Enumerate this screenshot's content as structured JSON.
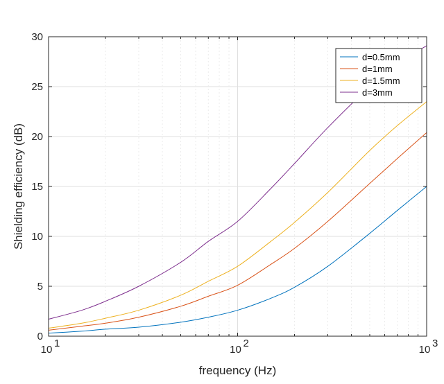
{
  "chart_data": {
    "type": "line",
    "title": "",
    "xlabel": "frequency (Hz)",
    "ylabel": "Shielding efficiency (dB)",
    "xscale": "log",
    "xlim": [
      10,
      1000
    ],
    "ylim": [
      0,
      30
    ],
    "xticks": [
      {
        "base": "10",
        "exp": "1"
      },
      {
        "base": "10",
        "exp": "2"
      },
      {
        "base": "10",
        "exp": "3"
      }
    ],
    "yticks": [
      "0",
      "5",
      "10",
      "15",
      "20",
      "25",
      "30"
    ],
    "grid": true,
    "legend_position": "top-right",
    "colors": {
      "axis": "#262626",
      "grid_major": "#dfdfdf",
      "grid_minor": "#ebebeb"
    },
    "series": [
      {
        "name": "d=0.5mm",
        "color": "#0072BD",
        "x": [
          10,
          15,
          20,
          30,
          50,
          70,
          100,
          150,
          200,
          300,
          500,
          700,
          1000
        ],
        "y": [
          0.3,
          0.5,
          0.7,
          0.9,
          1.4,
          1.9,
          2.6,
          3.8,
          4.9,
          7.0,
          10.3,
          12.6,
          15.0
        ]
      },
      {
        "name": "d=1mm",
        "color": "#D95319",
        "x": [
          10,
          15,
          20,
          30,
          50,
          70,
          100,
          150,
          200,
          300,
          500,
          700,
          1000
        ],
        "y": [
          0.6,
          1.0,
          1.3,
          1.9,
          3.0,
          4.0,
          5.1,
          7.2,
          8.8,
          11.5,
          15.3,
          17.8,
          20.4
        ]
      },
      {
        "name": "d=1.5mm",
        "color": "#EDB120",
        "x": [
          10,
          15,
          20,
          30,
          50,
          70,
          100,
          150,
          200,
          300,
          500,
          700,
          1000
        ],
        "y": [
          0.8,
          1.3,
          1.8,
          2.6,
          4.1,
          5.5,
          7.0,
          9.5,
          11.4,
          14.4,
          18.6,
          21.1,
          23.5
        ]
      },
      {
        "name": "d=3mm",
        "color": "#7E2F8E",
        "x": [
          10,
          15,
          20,
          30,
          50,
          70,
          100,
          150,
          200,
          300,
          500,
          700,
          1000
        ],
        "y": [
          1.7,
          2.6,
          3.5,
          5.0,
          7.4,
          9.5,
          11.5,
          14.8,
          17.3,
          20.9,
          25.0,
          27.3,
          29.1
        ]
      }
    ]
  }
}
